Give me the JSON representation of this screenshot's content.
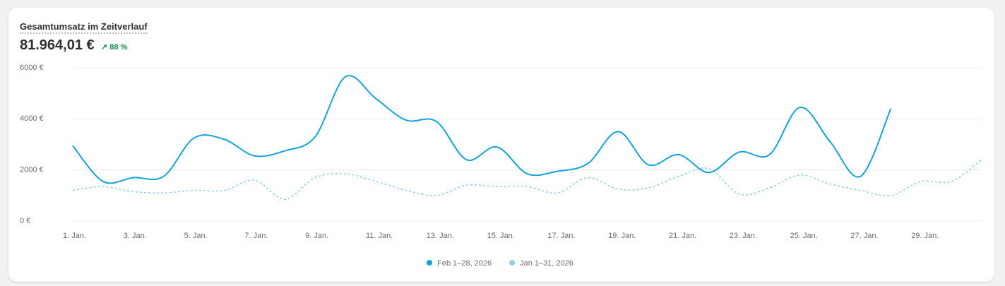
{
  "header": {
    "title": "Gesamtumsatz im Zeitverlauf",
    "value": "81.964,01 €",
    "change": "88 %"
  },
  "chart_data": {
    "type": "line",
    "categories": [
      "1. Jan.",
      null,
      "3. Jan.",
      null,
      "5. Jan.",
      null,
      "7. Jan.",
      null,
      "9. Jan.",
      null,
      "11. Jan.",
      null,
      "13. Jan.",
      null,
      "15. Jan.",
      null,
      "17. Jan.",
      null,
      "19. Jan.",
      null,
      "21. Jan.",
      null,
      "23. Jan.",
      null,
      "25. Jan.",
      null,
      "27. Jan.",
      null,
      "29. Jan.",
      null,
      null
    ],
    "series": [
      {
        "name": "Feb 1–28, 2026",
        "color": "#13a4d8",
        "dashed": false,
        "values": [
          2950,
          1550,
          1700,
          1750,
          3250,
          3200,
          2550,
          2750,
          3300,
          5650,
          4800,
          3950,
          3900,
          2400,
          2900,
          1850,
          1950,
          2250,
          3500,
          2200,
          2600,
          1900,
          2700,
          2600,
          4450,
          3100,
          1750,
          4400,
          null,
          null,
          null
        ]
      },
      {
        "name": "Jan 1–31, 2026",
        "color": "#8fd0e6",
        "dashed": true,
        "values": [
          1200,
          1350,
          1150,
          1100,
          1200,
          1200,
          1600,
          850,
          1700,
          1850,
          1550,
          1200,
          1000,
          1400,
          1350,
          1350,
          1100,
          1700,
          1250,
          1300,
          1750,
          2050,
          1050,
          1300,
          1800,
          1450,
          1200,
          1000,
          1550,
          1550,
          2400
        ]
      }
    ],
    "ylim": [
      0,
      6000
    ],
    "yticks": [
      {
        "value": 0,
        "label": "0 €"
      },
      {
        "value": 2000,
        "label": "2000 €"
      },
      {
        "value": 4000,
        "label": "4000 €"
      },
      {
        "value": 6000,
        "label": "6000 €"
      }
    ],
    "grid": true
  }
}
